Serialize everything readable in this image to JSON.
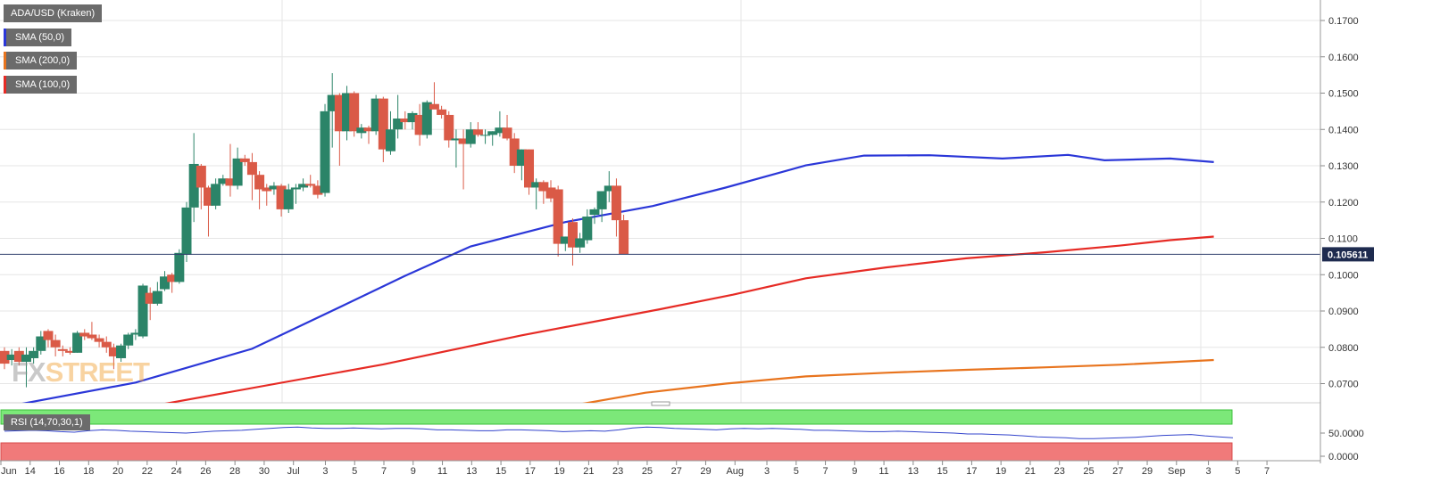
{
  "header": {
    "symbol": "ADA/USD (Kraken)",
    "indicators": [
      {
        "label": "SMA (50,0)",
        "color": "#2b37d8"
      },
      {
        "label": "SMA (200,0)",
        "color": "#e8741e"
      },
      {
        "label": "SMA (100,0)",
        "color": "#e62b25"
      }
    ],
    "watermark_fx": "FX",
    "watermark_street": "STREET"
  },
  "rsi": {
    "label": "RSI (14,70,30,1)",
    "ticks": [
      "50.0000",
      "0.0000"
    ],
    "values": [
      54,
      55,
      56,
      55,
      53,
      52,
      55,
      57,
      56,
      54,
      53,
      52,
      51,
      50,
      52,
      54,
      55,
      56,
      58,
      60,
      62,
      63,
      61,
      60,
      60,
      61,
      60,
      59,
      60,
      60,
      59,
      57,
      57,
      56,
      55,
      55,
      57,
      57,
      56,
      55,
      53,
      54,
      55,
      54,
      57,
      61,
      63,
      62,
      60,
      59,
      58,
      57,
      59,
      60,
      59,
      60,
      59,
      58,
      56,
      56,
      55,
      54,
      53,
      53,
      54,
      53,
      52,
      51,
      50,
      48,
      48,
      47,
      46,
      44,
      42,
      41,
      40,
      38,
      38,
      39,
      40,
      41,
      43,
      45,
      46,
      47,
      44,
      42,
      40
    ]
  },
  "chart_data": {
    "type": "candlestick",
    "title": "ADA/USD (Kraken)",
    "ylim": [
      0.065,
      0.175
    ],
    "y_ticks": [
      "0.1700",
      "0.1600",
      "0.1500",
      "0.1400",
      "0.1300",
      "0.1200",
      "0.1100",
      "0.1000",
      "0.0900",
      "0.0800",
      "0.0700"
    ],
    "x_ticks": [
      "Jun",
      "14",
      "16",
      "18",
      "20",
      "22",
      "24",
      "26",
      "28",
      "30",
      "Jul",
      "3",
      "5",
      "7",
      "9",
      "11",
      "13",
      "15",
      "17",
      "19",
      "21",
      "23",
      "25",
      "27",
      "29",
      "Aug",
      "3",
      "5",
      "7",
      "9",
      "11",
      "13",
      "15",
      "17",
      "19",
      "21",
      "23",
      "25",
      "27",
      "29",
      "Sep",
      "3",
      "5",
      "7"
    ],
    "current_price": {
      "label": "0.105611",
      "value": 0.105611
    },
    "candles": [
      [
        0.079,
        0.08,
        0.074,
        0.0755
      ],
      [
        0.0765,
        0.0795,
        0.075,
        0.078
      ],
      [
        0.079,
        0.08,
        0.075,
        0.076
      ],
      [
        0.076,
        0.08,
        0.069,
        0.078
      ],
      [
        0.077,
        0.08,
        0.0755,
        0.079
      ],
      [
        0.079,
        0.0845,
        0.078,
        0.083
      ],
      [
        0.0845,
        0.085,
        0.08,
        0.082
      ],
      [
        0.082,
        0.0835,
        0.0775,
        0.08
      ],
      [
        0.0795,
        0.0805,
        0.0775,
        0.079
      ],
      [
        0.079,
        0.08,
        0.078,
        0.0785
      ],
      [
        0.0785,
        0.0845,
        0.0785,
        0.084
      ],
      [
        0.084,
        0.085,
        0.082,
        0.083
      ],
      [
        0.0835,
        0.087,
        0.082,
        0.0825
      ],
      [
        0.0825,
        0.0835,
        0.08,
        0.0815
      ],
      [
        0.0815,
        0.083,
        0.0785,
        0.08
      ],
      [
        0.08,
        0.081,
        0.074,
        0.0775
      ],
      [
        0.077,
        0.081,
        0.076,
        0.0805
      ],
      [
        0.0805,
        0.084,
        0.0795,
        0.0835
      ],
      [
        0.0835,
        0.085,
        0.082,
        0.084
      ],
      [
        0.083,
        0.0975,
        0.0825,
        0.097
      ],
      [
        0.095,
        0.0965,
        0.0875,
        0.092
      ],
      [
        0.092,
        0.098,
        0.0915,
        0.0955
      ],
      [
        0.096,
        0.101,
        0.0955,
        0.0995
      ],
      [
        0.1,
        0.1005,
        0.095,
        0.098
      ],
      [
        0.098,
        0.107,
        0.0975,
        0.106
      ],
      [
        0.1055,
        0.12,
        0.1035,
        0.1185
      ],
      [
        0.1185,
        0.139,
        0.1145,
        0.1305
      ],
      [
        0.13,
        0.1305,
        0.118,
        0.124
      ],
      [
        0.124,
        0.1245,
        0.1105,
        0.119
      ],
      [
        0.119,
        0.1265,
        0.118,
        0.125
      ],
      [
        0.125,
        0.1275,
        0.1245,
        0.1265
      ],
      [
        0.1265,
        0.136,
        0.1215,
        0.1245
      ],
      [
        0.1245,
        0.135,
        0.1235,
        0.132
      ],
      [
        0.132,
        0.133,
        0.13,
        0.131
      ],
      [
        0.131,
        0.1335,
        0.1205,
        0.1275
      ],
      [
        0.1275,
        0.1285,
        0.118,
        0.1235
      ],
      [
        0.124,
        0.125,
        0.119,
        0.123
      ],
      [
        0.1235,
        0.1255,
        0.122,
        0.1245
      ],
      [
        0.1245,
        0.125,
        0.116,
        0.118
      ],
      [
        0.118,
        0.125,
        0.117,
        0.1235
      ],
      [
        0.1235,
        0.125,
        0.1195,
        0.124
      ],
      [
        0.124,
        0.1265,
        0.123,
        0.125
      ],
      [
        0.125,
        0.1275,
        0.124,
        0.1245
      ],
      [
        0.1245,
        0.126,
        0.121,
        0.122
      ],
      [
        0.1225,
        0.147,
        0.1215,
        0.145
      ],
      [
        0.145,
        0.1555,
        0.135,
        0.1495
      ],
      [
        0.1495,
        0.15,
        0.13,
        0.1395
      ],
      [
        0.1395,
        0.152,
        0.137,
        0.15
      ],
      [
        0.15,
        0.1505,
        0.138,
        0.1395
      ],
      [
        0.139,
        0.1415,
        0.1375,
        0.1405
      ],
      [
        0.1405,
        0.141,
        0.136,
        0.1395
      ],
      [
        0.1395,
        0.1495,
        0.1385,
        0.1485
      ],
      [
        0.1485,
        0.149,
        0.131,
        0.1345
      ],
      [
        0.134,
        0.145,
        0.133,
        0.14
      ],
      [
        0.14,
        0.1495,
        0.1375,
        0.143
      ],
      [
        0.143,
        0.145,
        0.14,
        0.142
      ],
      [
        0.142,
        0.145,
        0.14,
        0.1445
      ],
      [
        0.144,
        0.147,
        0.1355,
        0.1385
      ],
      [
        0.1385,
        0.148,
        0.1375,
        0.1475
      ],
      [
        0.147,
        0.153,
        0.146,
        0.1455
      ],
      [
        0.1455,
        0.1465,
        0.143,
        0.144
      ],
      [
        0.144,
        0.145,
        0.135,
        0.137
      ],
      [
        0.137,
        0.14,
        0.1295,
        0.1375
      ],
      [
        0.1375,
        0.14,
        0.1235,
        0.136
      ],
      [
        0.136,
        0.142,
        0.135,
        0.14
      ],
      [
        0.14,
        0.142,
        0.138,
        0.1385
      ],
      [
        0.1385,
        0.14,
        0.136,
        0.1385
      ],
      [
        0.1385,
        0.1395,
        0.1355,
        0.1395
      ],
      [
        0.139,
        0.145,
        0.138,
        0.1405
      ],
      [
        0.1405,
        0.144,
        0.137,
        0.1375
      ],
      [
        0.1375,
        0.139,
        0.128,
        0.13
      ],
      [
        0.13,
        0.1345,
        0.126,
        0.1345
      ],
      [
        0.1345,
        0.1345,
        0.122,
        0.124
      ],
      [
        0.124,
        0.1265,
        0.118,
        0.1255
      ],
      [
        0.1255,
        0.126,
        0.1195,
        0.123
      ],
      [
        0.124,
        0.126,
        0.12,
        0.121
      ],
      [
        0.1235,
        0.1245,
        0.105,
        0.1085
      ],
      [
        0.1085,
        0.1105,
        0.1065,
        0.1105
      ],
      [
        0.1145,
        0.1155,
        0.1025,
        0.1075
      ],
      [
        0.1075,
        0.1115,
        0.106,
        0.11
      ],
      [
        0.1095,
        0.118,
        0.1085,
        0.116
      ],
      [
        0.1165,
        0.1185,
        0.114,
        0.118
      ],
      [
        0.118,
        0.1225,
        0.1145,
        0.123
      ],
      [
        0.123,
        0.1285,
        0.12,
        0.1245
      ],
      [
        0.1245,
        0.1265,
        0.1105,
        0.115
      ],
      [
        0.115,
        0.1165,
        0.1056,
        0.1056
      ]
    ],
    "series": [
      {
        "name": "SMA (50,0)",
        "color": "#2b37d8",
        "x": [
          2,
          18,
          34,
          47,
          55,
          64,
          77,
          89,
          99,
          110,
          118,
          127,
          137,
          146,
          151,
          160,
          166
        ],
        "y": [
          0.0643,
          0.0703,
          0.0796,
          0.092,
          0.0997,
          0.1078,
          0.1145,
          0.1189,
          0.124,
          0.1301,
          0.1328,
          0.1329,
          0.132,
          0.133,
          0.1315,
          0.132,
          0.131
        ]
      },
      {
        "name": "SMA (100,0)",
        "color": "#e62b25",
        "x": [
          18,
          52,
          71,
          90,
          100,
          110,
          121,
          132,
          143,
          153,
          160,
          166
        ],
        "y": [
          0.063,
          0.0753,
          0.0833,
          0.0905,
          0.0945,
          0.099,
          0.102,
          0.1045,
          0.1062,
          0.108,
          0.1095,
          0.1105
        ]
      },
      {
        "name": "SMA (200,0)",
        "color": "#e8741e",
        "x": [
          78,
          88,
          99,
          110,
          121,
          132,
          143,
          153,
          166
        ],
        "y": [
          0.064,
          0.0675,
          0.07,
          0.072,
          0.073,
          0.0738,
          0.0745,
          0.0752,
          0.0765
        ]
      }
    ]
  }
}
